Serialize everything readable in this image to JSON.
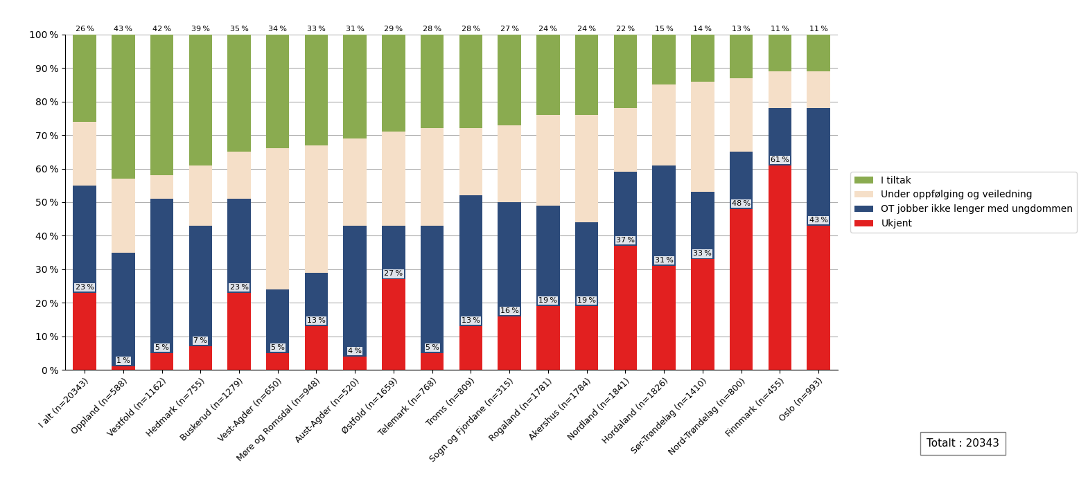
{
  "chart_data": {
    "type": "bar",
    "stacked": true,
    "categories": [
      "I alt (n=20343)",
      "Oppland (n=588)",
      "Vestfold (n=1162)",
      "Hedmark (n=755)",
      "Buskerud (n=1279)",
      "Vest-Agder (n=650)",
      "Møre og Romsdal (n=948)",
      "Aust-Agder (n=520)",
      "Østfold (n=1659)",
      "Telemark (n=768)",
      "Troms (n=809)",
      "Sogn og Fjordane (n=315)",
      "Rogaland (n=1781)",
      "Akershus (n=1784)",
      "Nordland (n=1841)",
      "Hordaland (n=1826)",
      "Sør-Trøndelag (n=1410)",
      "Nord-Trøndelag (n=800)",
      "Finnmark (n=455)",
      "Oslo (n=993)"
    ],
    "series": [
      {
        "name": "Ukjent",
        "color": "#e22020",
        "values": [
          23,
          1,
          5,
          7,
          23,
          5,
          13,
          4,
          27,
          5,
          13,
          16,
          19,
          19,
          37,
          31,
          33,
          48,
          61,
          43
        ],
        "data_labels": true,
        "value_labels": [
          "23 %",
          "1 %",
          "5 %",
          "7 %",
          "23 %",
          "5 %",
          "13 %",
          "4 %",
          "27 %",
          "5 %",
          "13 %",
          "16 %",
          "19 %",
          "19 %",
          "37 %",
          "31 %",
          "33 %",
          "48 %",
          "61 %",
          "43 %"
        ]
      },
      {
        "name": "OT jobber ikke lenger med ungdommen",
        "color": "#2d4b7a",
        "values": [
          32,
          34,
          46,
          36,
          28,
          19,
          16,
          39,
          16,
          38,
          39,
          34,
          30,
          25,
          22,
          30,
          20,
          17,
          17,
          35
        ]
      },
      {
        "name": "Under oppfølging og veiledning",
        "color": "#f5dfc8",
        "values": [
          19,
          22,
          7,
          18,
          14,
          42,
          38,
          26,
          28,
          29,
          20,
          23,
          27,
          32,
          19,
          24,
          33,
          22,
          11,
          11
        ]
      },
      {
        "name": "I tiltak",
        "color": "#8aab50",
        "values": [
          26,
          43,
          42,
          39,
          35,
          34,
          33,
          31,
          29,
          28,
          28,
          27,
          24,
          24,
          22,
          15,
          14,
          13,
          11,
          11
        ],
        "data_labels": true,
        "value_labels": [
          "26 %",
          "43 %",
          "42 %",
          "39 %",
          "35 %",
          "34 %",
          "33 %",
          "31 %",
          "29 %",
          "28 %",
          "28 %",
          "27 %",
          "24 %",
          "24 %",
          "22 %",
          "15 %",
          "14 %",
          "13 %",
          "11 %",
          "11 %"
        ]
      }
    ],
    "ylim": [
      0,
      100
    ],
    "yticks": [
      {
        "value": 0,
        "label": "0 %"
      },
      {
        "value": 10,
        "label": "10 %"
      },
      {
        "value": 20,
        "label": "20 %"
      },
      {
        "value": 30,
        "label": "30 %"
      },
      {
        "value": 40,
        "label": "40 %"
      },
      {
        "value": 50,
        "label": "50 %"
      },
      {
        "value": 60,
        "label": "60 %"
      },
      {
        "value": 70,
        "label": "70 %"
      },
      {
        "value": 80,
        "label": "80 %"
      },
      {
        "value": 90,
        "label": "90 %"
      },
      {
        "value": 100,
        "label": "100 %"
      }
    ],
    "grid": true,
    "legend": "center left",
    "annotation": "Totalt : 20343"
  }
}
